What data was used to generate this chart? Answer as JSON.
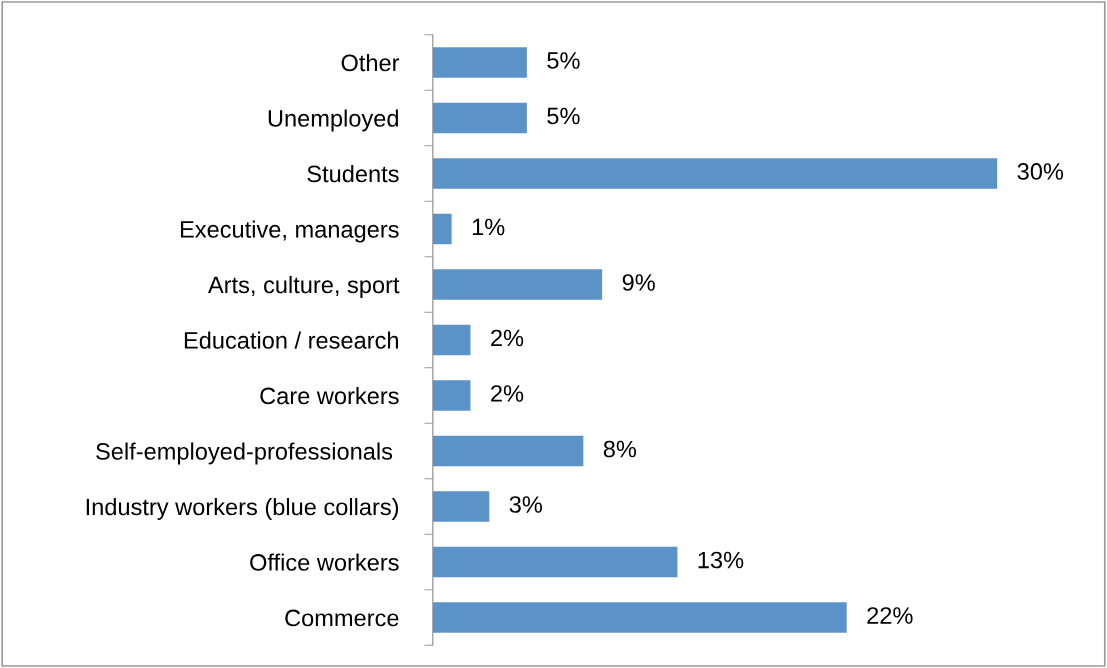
{
  "chart_data": {
    "type": "bar",
    "orientation": "horizontal",
    "categories": [
      "Other",
      "Unemployed",
      "Students",
      "Executive, managers",
      "Arts, culture, sport",
      "Education / research",
      "Care workers",
      "Self-employed-professionals ",
      "Industry workers (blue collars)",
      "Office workers",
      "Commerce"
    ],
    "values": [
      5,
      5,
      30,
      1,
      9,
      2,
      2,
      8,
      3,
      13,
      22
    ],
    "value_labels": [
      "5%",
      "5%",
      "30%",
      "1%",
      "9%",
      "2%",
      "2%",
      "8%",
      "3%",
      "13%",
      "22%"
    ],
    "color": "#5b93c9",
    "grid": false,
    "legend": false
  }
}
